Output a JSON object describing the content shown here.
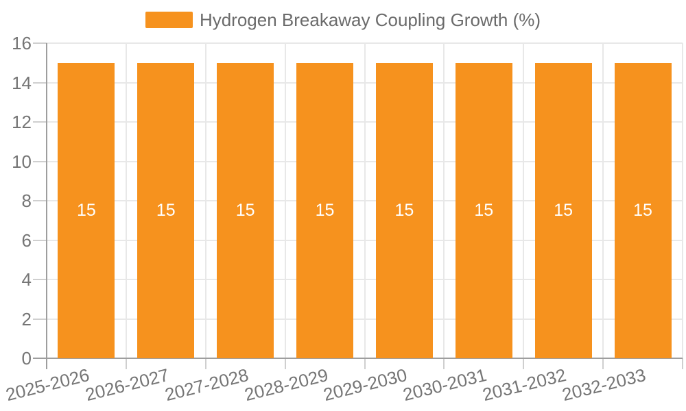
{
  "legend": {
    "label": "Hydrogen Breakaway Coupling Growth (%)"
  },
  "colors": {
    "bar": "#F6921E",
    "axis": "#9E9E9E",
    "grid": "#E8E8E8",
    "tick": "#CFCFCF",
    "text": "#757575",
    "bar_label": "#FFFFFF",
    "background": "#FFFFFF"
  },
  "chart_data": {
    "type": "bar",
    "title": "Hydrogen Breakaway Coupling Growth (%)",
    "categories": [
      "2025-2026",
      "2026-2027",
      "2027-2028",
      "2028-2029",
      "2029-2030",
      "2030-2031",
      "2031-2032",
      "2032-2033"
    ],
    "values": [
      15,
      15,
      15,
      15,
      15,
      15,
      15,
      15
    ],
    "bar_labels": [
      "15",
      "15",
      "15",
      "15",
      "15",
      "15",
      "15",
      "15"
    ],
    "xlabel": "",
    "ylabel": "",
    "ylim": [
      0,
      16
    ],
    "yticks": [
      0,
      2,
      4,
      6,
      8,
      10,
      12,
      14,
      16
    ],
    "grid": "on",
    "legend_position": "top-center"
  }
}
